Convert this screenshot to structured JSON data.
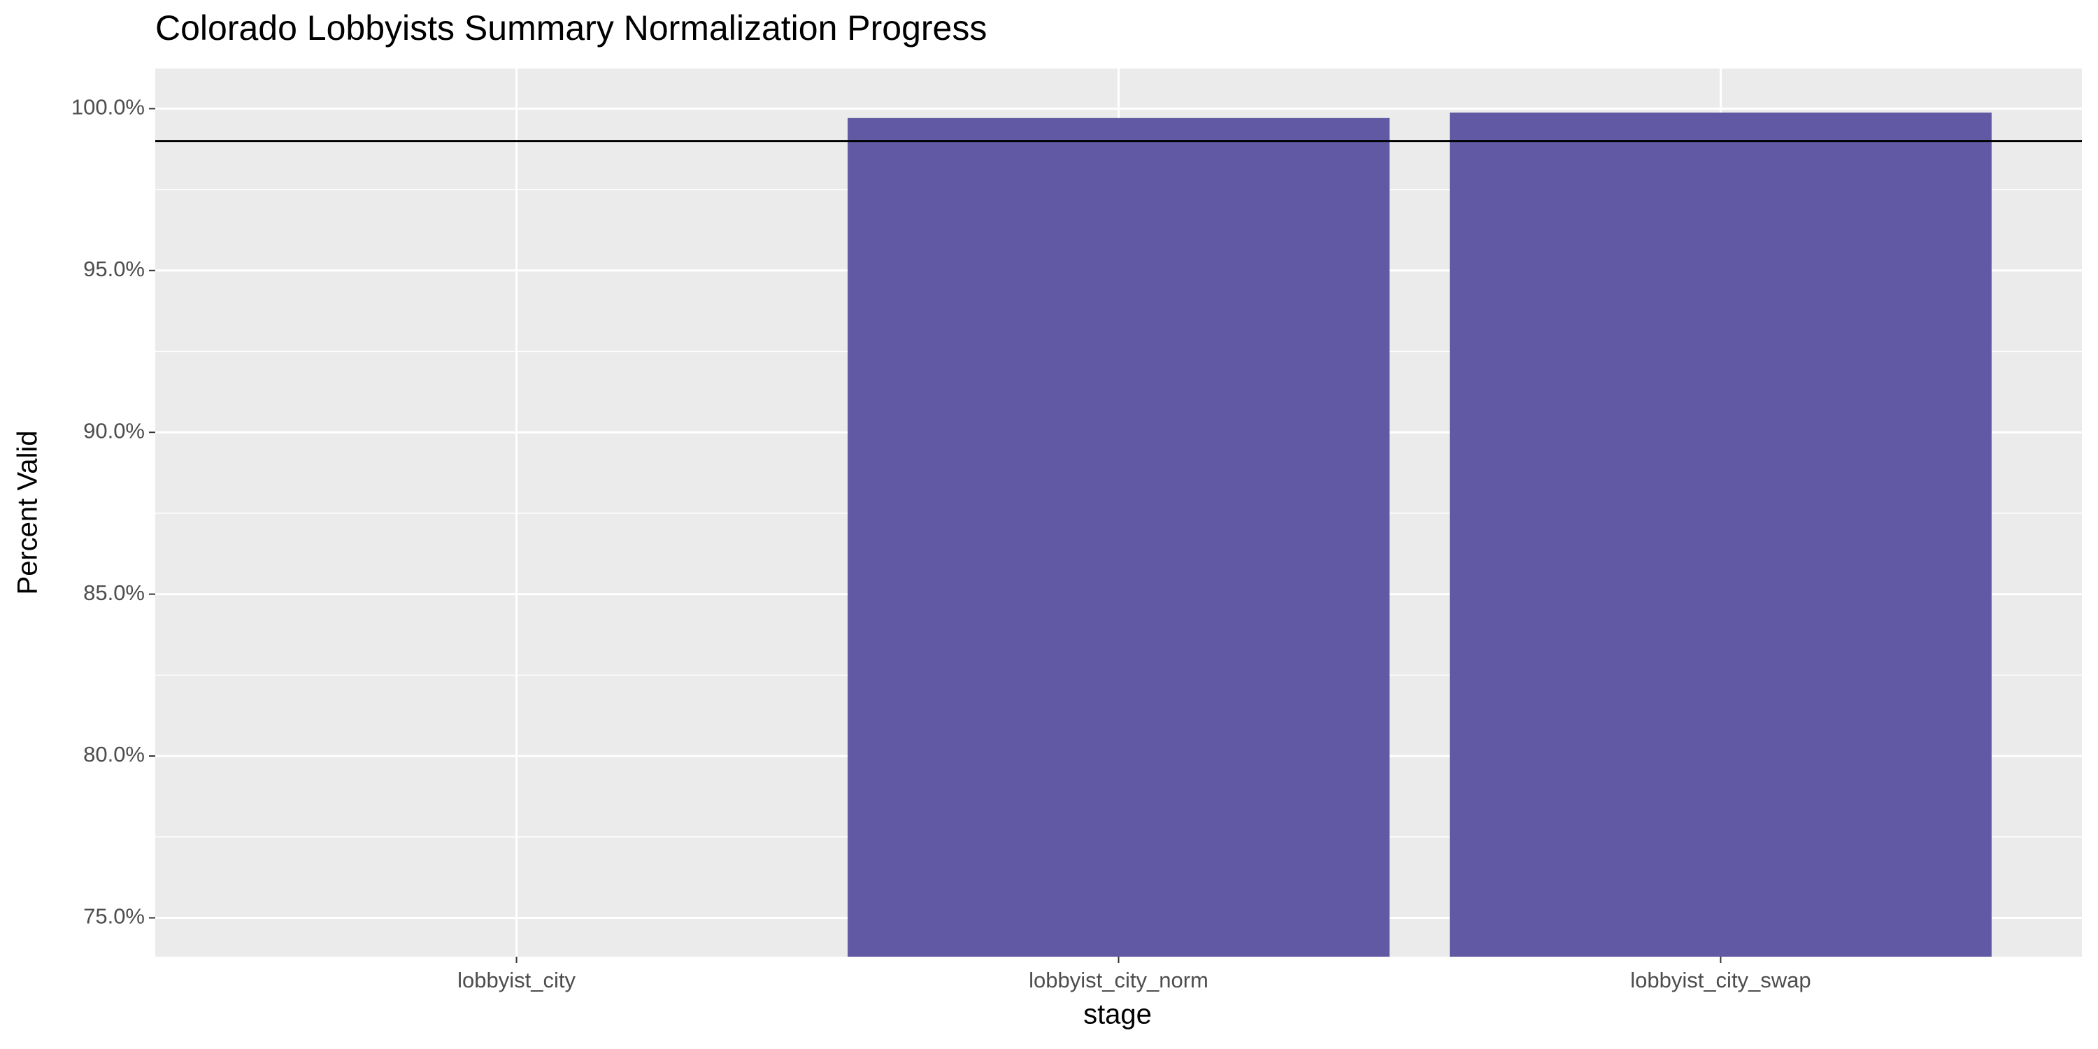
{
  "chart_data": {
    "type": "bar",
    "title": "Colorado Lobbyists Summary Normalization Progress",
    "x_label": "stage",
    "y_label": "Percent Valid",
    "categories": [
      "lobbyist_city",
      "lobbyist_city_norm",
      "lobbyist_city_swap"
    ],
    "values": [
      null,
      99.71,
      99.88
    ],
    "color": "#6159a3",
    "reference_line": 99,
    "ylim": [
      73.8,
      101.24
    ],
    "yticks": [
      {
        "value": 75,
        "label": "75.0%"
      },
      {
        "value": 80,
        "label": "80.0%"
      },
      {
        "value": 85,
        "label": "85.0%"
      },
      {
        "value": 90,
        "label": "90.0%"
      },
      {
        "value": 95,
        "label": "95.0%"
      },
      {
        "value": 100,
        "label": "100.0%"
      }
    ],
    "grid": true
  }
}
